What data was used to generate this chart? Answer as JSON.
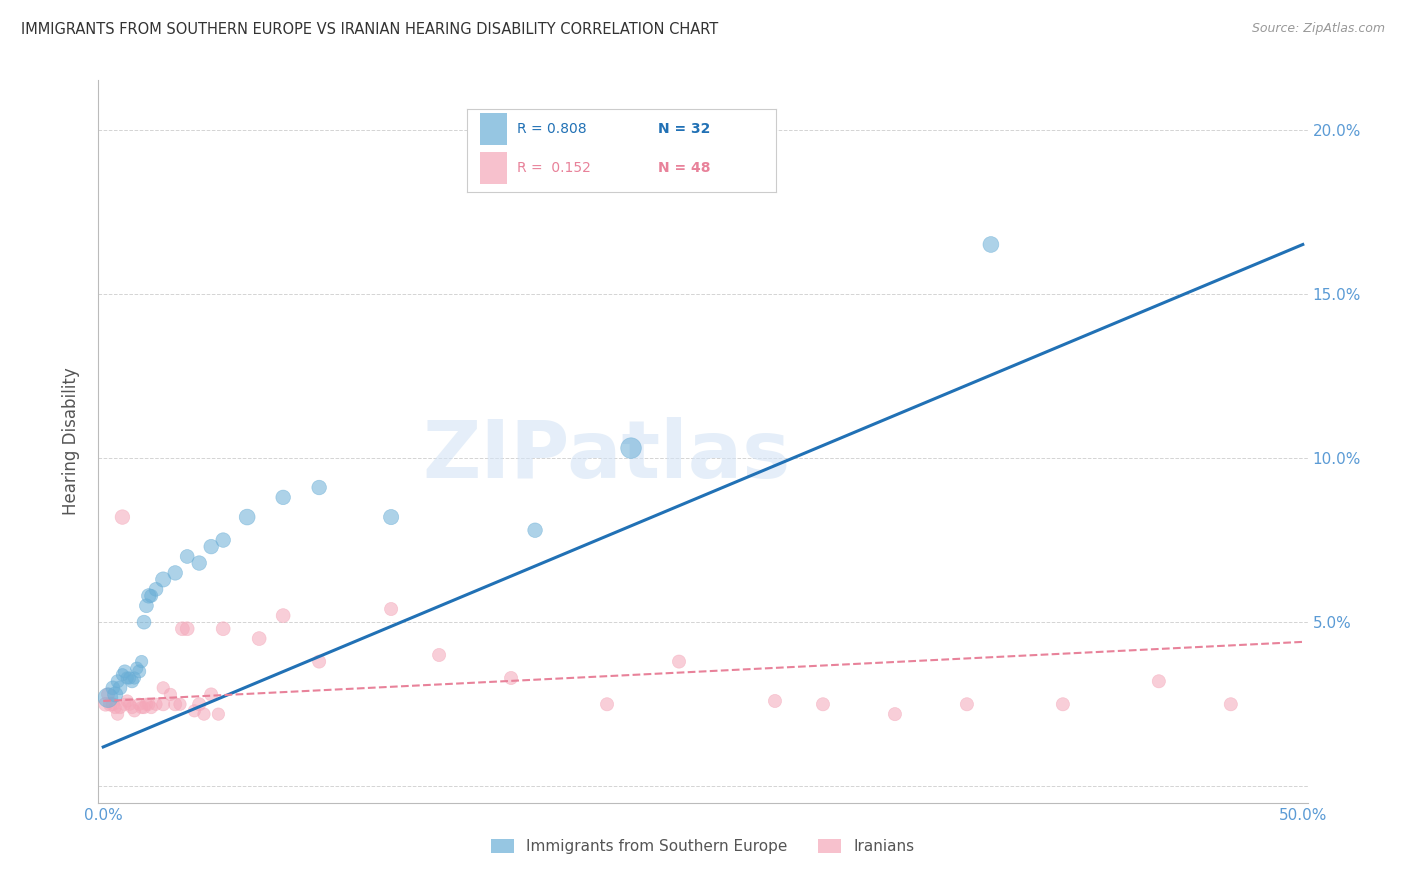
{
  "title": "IMMIGRANTS FROM SOUTHERN EUROPE VS IRANIAN HEARING DISABILITY CORRELATION CHART",
  "source": "Source: ZipAtlas.com",
  "ylabel": "Hearing Disability",
  "xlim": [
    -0.002,
    0.502
  ],
  "ylim": [
    -0.005,
    0.215
  ],
  "xticks": [
    0.0,
    0.1,
    0.2,
    0.3,
    0.4,
    0.5
  ],
  "xtick_labels": [
    "0.0%",
    "",
    "",
    "",
    "",
    "50.0%"
  ],
  "yticks": [
    0.0,
    0.05,
    0.1,
    0.15,
    0.2
  ],
  "ytick_labels": [
    "",
    "5.0%",
    "10.0%",
    "15.0%",
    "20.0%"
  ],
  "legend_blue_r": "0.808",
  "legend_blue_n": "32",
  "legend_pink_r": "0.152",
  "legend_pink_n": "48",
  "legend_blue_label": "Immigrants from Southern Europe",
  "legend_pink_label": "Iranians",
  "blue_color": "#6aaed6",
  "pink_color": "#f4a7b9",
  "blue_line_color": "#2171b5",
  "pink_line_color": "#e8829a",
  "title_color": "#333333",
  "axis_color": "#5b9bd5",
  "watermark": "ZIPatlas",
  "blue_scatter_x": [
    0.002,
    0.004,
    0.005,
    0.006,
    0.007,
    0.008,
    0.009,
    0.01,
    0.011,
    0.012,
    0.013,
    0.014,
    0.015,
    0.016,
    0.017,
    0.018,
    0.019,
    0.02,
    0.022,
    0.025,
    0.03,
    0.035,
    0.04,
    0.045,
    0.05,
    0.06,
    0.075,
    0.09,
    0.12,
    0.18,
    0.37,
    0.22
  ],
  "blue_scatter_y": [
    0.027,
    0.03,
    0.028,
    0.032,
    0.03,
    0.034,
    0.035,
    0.033,
    0.033,
    0.032,
    0.033,
    0.036,
    0.035,
    0.038,
    0.05,
    0.055,
    0.058,
    0.058,
    0.06,
    0.063,
    0.065,
    0.07,
    0.068,
    0.073,
    0.075,
    0.082,
    0.088,
    0.091,
    0.082,
    0.078,
    0.165,
    0.103
  ],
  "blue_scatter_sizes": [
    200,
    100,
    120,
    90,
    100,
    80,
    90,
    80,
    80,
    90,
    80,
    80,
    90,
    80,
    100,
    100,
    110,
    90,
    100,
    120,
    110,
    100,
    110,
    110,
    110,
    130,
    110,
    110,
    120,
    110,
    130,
    220
  ],
  "pink_scatter_x": [
    0.001,
    0.002,
    0.003,
    0.004,
    0.005,
    0.006,
    0.007,
    0.008,
    0.009,
    0.01,
    0.011,
    0.012,
    0.013,
    0.015,
    0.016,
    0.017,
    0.018,
    0.019,
    0.02,
    0.022,
    0.025,
    0.03,
    0.033,
    0.035,
    0.04,
    0.045,
    0.05,
    0.065,
    0.075,
    0.09,
    0.12,
    0.14,
    0.17,
    0.21,
    0.24,
    0.28,
    0.3,
    0.33,
    0.36,
    0.4,
    0.44,
    0.47,
    0.025,
    0.028,
    0.032,
    0.038,
    0.042,
    0.048
  ],
  "pink_scatter_y": [
    0.025,
    0.028,
    0.025,
    0.025,
    0.024,
    0.022,
    0.024,
    0.082,
    0.025,
    0.026,
    0.025,
    0.024,
    0.023,
    0.025,
    0.024,
    0.024,
    0.025,
    0.025,
    0.024,
    0.025,
    0.025,
    0.025,
    0.048,
    0.048,
    0.025,
    0.028,
    0.048,
    0.045,
    0.052,
    0.038,
    0.054,
    0.04,
    0.033,
    0.025,
    0.038,
    0.026,
    0.025,
    0.022,
    0.025,
    0.025,
    0.032,
    0.025,
    0.03,
    0.028,
    0.025,
    0.023,
    0.022,
    0.022
  ],
  "pink_scatter_sizes": [
    100,
    90,
    100,
    90,
    80,
    80,
    80,
    110,
    80,
    80,
    80,
    80,
    80,
    80,
    80,
    80,
    80,
    80,
    80,
    80,
    90,
    90,
    100,
    100,
    90,
    90,
    100,
    100,
    100,
    90,
    90,
    90,
    90,
    90,
    90,
    90,
    90,
    90,
    90,
    90,
    90,
    90,
    80,
    80,
    80,
    80,
    80,
    80
  ],
  "blue_trend_x": [
    0.0,
    0.5
  ],
  "blue_trend_y": [
    0.012,
    0.165
  ],
  "pink_trend_x": [
    0.0,
    0.5
  ],
  "pink_trend_y": [
    0.026,
    0.044
  ],
  "background_color": "#ffffff",
  "grid_color": "#d0d0d0"
}
